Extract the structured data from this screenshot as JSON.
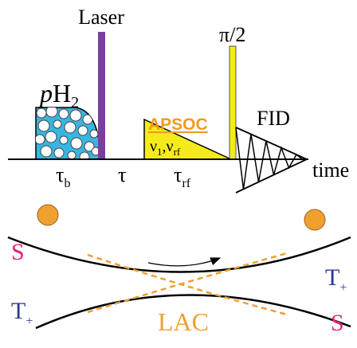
{
  "sequence": {
    "laser": "Laser",
    "parahydrogen": {
      "italic": "p",
      "base": "H",
      "sub": "2"
    },
    "apsoc": "APSOC",
    "pulse": "π/2",
    "fid": "FID",
    "field": [
      {
        "base": "ν",
        "sub": "1"
      },
      {
        "base": ",ν",
        "sub": "rf"
      }
    ],
    "delays": [
      {
        "base": "τ",
        "sub": "b"
      },
      {
        "base": "τ"
      },
      {
        "base": "τ",
        "sub": "rf"
      }
    ],
    "axis": "time"
  },
  "lac": {
    "left_upper": "S",
    "left_lower": {
      "base": "T",
      "sub": "+"
    },
    "right_upper": {
      "base": "T",
      "sub": "+"
    },
    "right_lower": "S",
    "label": "LAC"
  }
}
